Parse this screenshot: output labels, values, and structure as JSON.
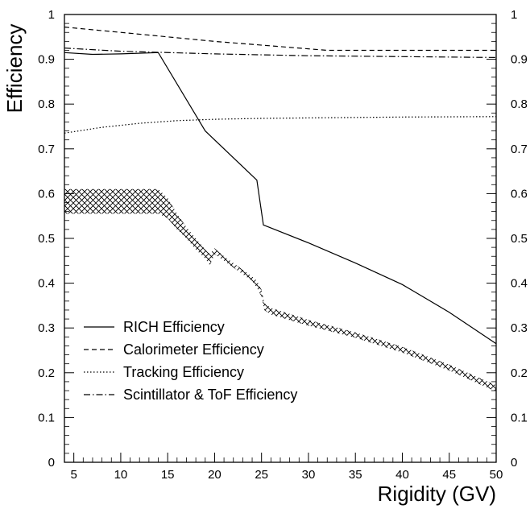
{
  "chart_data": {
    "type": "line",
    "title": "",
    "xlabel": "Rigidity (GV)",
    "ylabel": "Efficiency",
    "xlim": [
      4,
      50
    ],
    "ylim": [
      0,
      1
    ],
    "x_ticks": [
      5,
      10,
      15,
      20,
      25,
      30,
      35,
      40,
      45,
      50
    ],
    "y_ticks": [
      0,
      0.1,
      0.2,
      0.3,
      0.4,
      0.5,
      0.6,
      0.7,
      0.8,
      0.9,
      1
    ],
    "y_tick_labels": [
      "0",
      "0.1",
      "0.2",
      "0.3",
      "0.4",
      "0.5",
      "0.6",
      "0.7",
      "0.8",
      "0.9",
      "1"
    ],
    "right_axis_labels": true,
    "grid": false,
    "legend_position": "bottom-left",
    "series": [
      {
        "name": "RICH Efficiency",
        "style": "solid",
        "x": [
          4,
          7,
          10,
          14,
          19,
          24.5,
          25.2,
          30,
          35,
          40,
          45,
          50
        ],
        "y": [
          0.915,
          0.911,
          0.912,
          0.915,
          0.74,
          0.63,
          0.53,
          0.49,
          0.445,
          0.397,
          0.335,
          0.265
        ]
      },
      {
        "name": "Calorimeter Efficiency",
        "style": "dashed",
        "x": [
          4,
          10,
          20,
          32,
          40,
          50
        ],
        "y": [
          0.972,
          0.96,
          0.94,
          0.92,
          0.92,
          0.92
        ]
      },
      {
        "name": "Tracking Efficiency",
        "style": "dotted",
        "x": [
          4,
          8,
          12,
          16,
          20,
          25,
          30,
          40,
          50
        ],
        "y": [
          0.735,
          0.748,
          0.757,
          0.763,
          0.766,
          0.768,
          0.769,
          0.771,
          0.772
        ]
      },
      {
        "name": "Scintillator & ToF Efficiency",
        "style": "dashdot",
        "x": [
          4,
          10,
          20,
          30,
          40,
          50
        ],
        "y": [
          0.925,
          0.918,
          0.912,
          0.908,
          0.906,
          0.904
        ]
      }
    ],
    "band": {
      "style": "crosshatch",
      "x": [
        4,
        14,
        15,
        16,
        17,
        18,
        19,
        19.5,
        20,
        21,
        22,
        23,
        24,
        24.5,
        25,
        25.3,
        26,
        30,
        35,
        40,
        45,
        50
      ],
      "upper": [
        0.61,
        0.61,
        0.59,
        0.555,
        0.525,
        0.5,
        0.475,
        0.465,
        0.478,
        0.46,
        0.445,
        0.43,
        0.415,
        0.405,
        0.385,
        0.355,
        0.345,
        0.318,
        0.29,
        0.258,
        0.218,
        0.172
      ],
      "lower": [
        0.555,
        0.555,
        0.545,
        0.52,
        0.5,
        0.475,
        0.455,
        0.44,
        0.465,
        0.45,
        0.435,
        0.42,
        0.405,
        0.39,
        0.37,
        0.34,
        0.33,
        0.305,
        0.278,
        0.245,
        0.205,
        0.158
      ]
    }
  }
}
